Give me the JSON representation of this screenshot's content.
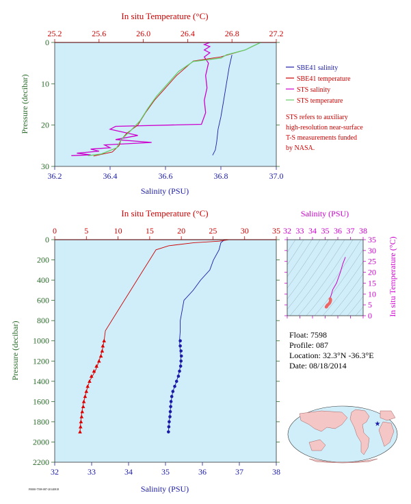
{
  "legend": {
    "items": [
      {
        "label": "SBE41 salinity",
        "color": "#1a1aa6"
      },
      {
        "label": "SBE41 temperature",
        "color": "#cc0000"
      },
      {
        "label": "STS salinity",
        "color": "#cc00cc"
      },
      {
        "label": "STS temperature",
        "color": "#66cc66"
      }
    ],
    "note_lines": [
      "STS refers to auxiliary",
      "high-resolution near-surface",
      "T-S measurements funded",
      "by NASA."
    ]
  },
  "info": {
    "float": "Float:  7598",
    "profile": "Profile:  087",
    "location": "Location:  32.3°N  -36.3°E",
    "date": "Date:  08/18/2014"
  },
  "footer_code": "F0000-7598-087-20140818",
  "chart_data": [
    {
      "type": "line",
      "name": "near-surface",
      "top_axis_label": "In situ Temperature (°C)",
      "top_ticks": [
        "25.2",
        "25.6",
        "26.0",
        "26.4",
        "26.8",
        "27.2"
      ],
      "temp_lim": [
        25.2,
        27.2
      ],
      "xlabel": "Salinity (PSU)",
      "xticks": [
        "36.2",
        "36.4",
        "36.6",
        "36.8",
        "37.0"
      ],
      "sal_lim": [
        36.2,
        37.0
      ],
      "ylabel": "Pressure (decibar)",
      "yticks": [
        "0",
        "10",
        "20",
        "30"
      ],
      "ylim": [
        0,
        30
      ],
      "series": [
        {
          "name": "SBE41 salinity",
          "axis": "sal",
          "color": "#1a1aa6",
          "points": [
            [
              36.84,
              3.0
            ],
            [
              36.83,
              6
            ],
            [
              36.82,
              10
            ],
            [
              36.81,
              14
            ],
            [
              36.8,
              18
            ],
            [
              36.79,
              21
            ],
            [
              36.785,
              24
            ],
            [
              36.78,
              26
            ],
            [
              36.77,
              27.3
            ]
          ]
        },
        {
          "name": "STS salinity",
          "axis": "sal",
          "color": "#cc00cc",
          "points": [
            [
              36.76,
              0
            ],
            [
              36.74,
              0.5
            ],
            [
              36.76,
              1
            ],
            [
              36.74,
              1.8
            ],
            [
              36.76,
              2.5
            ],
            [
              36.74,
              3.5
            ],
            [
              36.755,
              5
            ],
            [
              36.745,
              8
            ],
            [
              36.75,
              11
            ],
            [
              36.74,
              14
            ],
            [
              36.745,
              17
            ],
            [
              36.73,
              19.8
            ],
            [
              36.42,
              20.3
            ],
            [
              36.4,
              21
            ],
            [
              36.5,
              22.5
            ],
            [
              36.42,
              23.5
            ],
            [
              36.55,
              24.2
            ],
            [
              36.38,
              24.8
            ],
            [
              36.4,
              25.5
            ],
            [
              36.33,
              25.8
            ],
            [
              36.36,
              26.3
            ],
            [
              36.28,
              26.8
            ],
            [
              36.33,
              27.2
            ],
            [
              36.26,
              27.4
            ]
          ]
        },
        {
          "name": "SBE41 temperature",
          "axis": "temp",
          "color": "#cc0000",
          "points": [
            [
              27.06,
              0
            ],
            [
              26.92,
              1.8
            ],
            [
              26.7,
              3.5
            ],
            [
              26.45,
              4.5
            ],
            [
              26.3,
              8
            ],
            [
              26.2,
              11
            ],
            [
              26.1,
              14
            ],
            [
              26.02,
              17
            ],
            [
              25.95,
              20
            ],
            [
              25.85,
              22
            ],
            [
              25.8,
              23.5
            ],
            [
              25.78,
              25
            ],
            [
              25.72,
              26.5
            ],
            [
              25.55,
              27.5
            ]
          ]
        },
        {
          "name": "STS temperature",
          "axis": "temp",
          "color": "#66cc66",
          "points": [
            [
              27.06,
              0
            ],
            [
              26.98,
              1
            ],
            [
              26.92,
              1.8
            ],
            [
              26.75,
              3
            ],
            [
              26.7,
              3.8
            ],
            [
              26.45,
              4.6
            ],
            [
              26.32,
              7
            ],
            [
              26.22,
              10
            ],
            [
              26.12,
              13
            ],
            [
              26.04,
              16
            ],
            [
              25.97,
              19
            ],
            [
              25.88,
              21.5
            ],
            [
              25.8,
              23.5
            ],
            [
              25.76,
              25.5
            ],
            [
              25.62,
              27
            ],
            [
              25.5,
              27.4
            ]
          ]
        }
      ]
    },
    {
      "type": "line",
      "name": "full-profile",
      "top_axis_label": "In situ Temperature (°C)",
      "top_ticks": [
        "0",
        "5",
        "10",
        "15",
        "20",
        "25",
        "30",
        "35"
      ],
      "temp_lim": [
        0,
        35
      ],
      "xlabel": "Salinity (PSU)",
      "xticks": [
        "32",
        "33",
        "34",
        "35",
        "36",
        "37",
        "38"
      ],
      "sal_lim": [
        32,
        38
      ],
      "ylabel": "Pressure (decibar)",
      "yticks": [
        "0",
        "200",
        "400",
        "600",
        "800",
        "1000",
        "1200",
        "1400",
        "1600",
        "1800",
        "2000",
        "2200"
      ],
      "ylim": [
        0,
        2200
      ],
      "series": [
        {
          "name": "SBE41 salinity",
          "axis": "sal",
          "color": "#1a1aa6",
          "points": [
            [
              36.6,
              0
            ],
            [
              36.5,
              30
            ],
            [
              36.45,
              100
            ],
            [
              36.3,
              200
            ],
            [
              36.2,
              300
            ],
            [
              35.95,
              400
            ],
            [
              35.75,
              500
            ],
            [
              35.5,
              600
            ],
            [
              35.45,
              700
            ],
            [
              35.4,
              800
            ],
            [
              35.4,
              900
            ],
            [
              35.38,
              1000
            ],
            [
              35.4,
              1100
            ],
            [
              35.42,
              1200
            ],
            [
              35.38,
              1300
            ],
            [
              35.3,
              1400
            ],
            [
              35.2,
              1500
            ],
            [
              35.15,
              1600
            ],
            [
              35.13,
              1700
            ],
            [
              35.1,
              1800
            ],
            [
              35.08,
              1900
            ]
          ]
        },
        {
          "name": "SBE41 temperature",
          "axis": "temp",
          "color": "#cc0000",
          "points": [
            [
              27.5,
              0
            ],
            [
              26,
              15
            ],
            [
              22,
              30
            ],
            [
              18,
              60
            ],
            [
              16,
              100
            ],
            [
              15,
              200
            ],
            [
              14,
              300
            ],
            [
              13,
              400
            ],
            [
              12,
              500
            ],
            [
              11,
              600
            ],
            [
              10,
              700
            ],
            [
              9,
              800
            ],
            [
              8,
              900
            ],
            [
              7.8,
              1000
            ],
            [
              7.5,
              1100
            ],
            [
              7,
              1200
            ],
            [
              6.4,
              1300
            ],
            [
              5.5,
              1400
            ],
            [
              5,
              1500
            ],
            [
              4.6,
              1600
            ],
            [
              4.3,
              1700
            ],
            [
              4.1,
              1800
            ],
            [
              4.0,
              1900
            ]
          ]
        }
      ],
      "marker_series": [
        {
          "name": "SBE41 salinity",
          "axis": "sal",
          "marker": "circle",
          "points": [
            [
              35.4,
              1000
            ],
            [
              35.4,
              1050
            ],
            [
              35.42,
              1100
            ],
            [
              35.43,
              1150
            ],
            [
              35.42,
              1200
            ],
            [
              35.41,
              1250
            ],
            [
              35.38,
              1300
            ],
            [
              35.35,
              1350
            ],
            [
              35.3,
              1400
            ],
            [
              35.25,
              1450
            ],
            [
              35.2,
              1500
            ],
            [
              35.17,
              1550
            ],
            [
              35.15,
              1600
            ],
            [
              35.14,
              1650
            ],
            [
              35.13,
              1700
            ],
            [
              35.12,
              1750
            ],
            [
              35.1,
              1800
            ],
            [
              35.09,
              1850
            ],
            [
              35.08,
              1900
            ]
          ]
        },
        {
          "name": "SBE41 temperature",
          "axis": "temp",
          "marker": "triangle",
          "points": [
            [
              7.8,
              1000
            ],
            [
              7.6,
              1050
            ],
            [
              7.5,
              1100
            ],
            [
              7.3,
              1150
            ],
            [
              7.0,
              1200
            ],
            [
              6.6,
              1250
            ],
            [
              6.2,
              1300
            ],
            [
              5.8,
              1350
            ],
            [
              5.5,
              1400
            ],
            [
              5.2,
              1450
            ],
            [
              5.0,
              1500
            ],
            [
              4.8,
              1550
            ],
            [
              4.6,
              1600
            ],
            [
              4.5,
              1650
            ],
            [
              4.35,
              1700
            ],
            [
              4.25,
              1750
            ],
            [
              4.15,
              1800
            ],
            [
              4.08,
              1850
            ],
            [
              4.0,
              1900
            ]
          ]
        }
      ]
    },
    {
      "type": "line",
      "name": "ts-diagram",
      "top_axis_label": "Salinity (PSU)",
      "top_ticks": [
        "32",
        "33",
        "34",
        "35",
        "36",
        "37",
        "38"
      ],
      "sal_lim": [
        32,
        38
      ],
      "ylabel": "In situ Temperature (°C)",
      "yticks": [
        "0",
        "5",
        "10",
        "15",
        "20",
        "25",
        "30",
        "35"
      ],
      "temp_lim": [
        0,
        35
      ],
      "series": [
        {
          "name": "T-S",
          "color": "#cc00cc",
          "points": [
            [
              36.6,
              27
            ],
            [
              36.4,
              24
            ],
            [
              36.2,
              20
            ],
            [
              35.9,
              15
            ],
            [
              35.6,
              12
            ],
            [
              35.5,
              10
            ],
            [
              35.4,
              8
            ],
            [
              35.35,
              6
            ],
            [
              35.3,
              5
            ],
            [
              35.2,
              4
            ]
          ]
        }
      ]
    }
  ]
}
